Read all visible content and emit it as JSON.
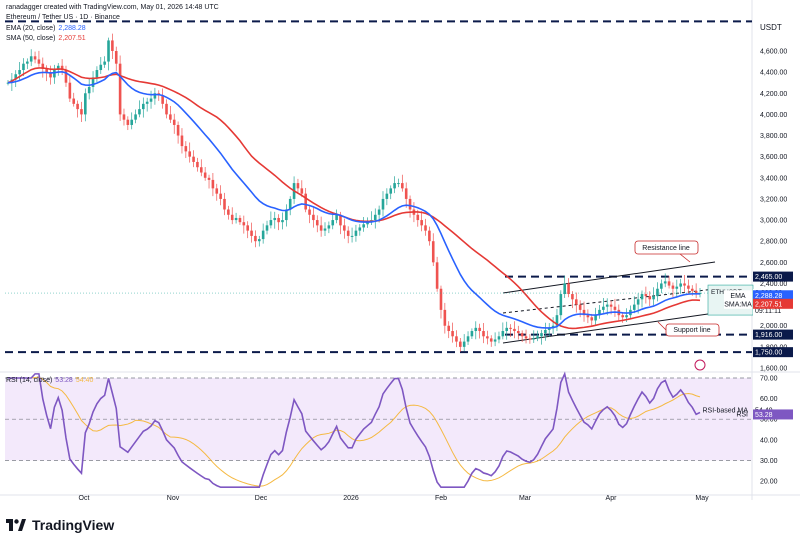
{
  "header": {
    "credit": "ranadagger created with TradingView.com, May 01, 2026 14:48 UTC",
    "symbol_line": "Ethereum / Tether US · 1D · Binance"
  },
  "legend": {
    "ema_label": "EMA (20, close)",
    "ema_value": "2,288.28",
    "sma_label": "SMA (50, close)",
    "sma_value": "2,207.51",
    "rsi_label": "RSI (14, close)",
    "rsi_value": "53.28",
    "rsi_ma_value": "54.40"
  },
  "branding": {
    "name": "TradingView"
  },
  "colors": {
    "up": "#26a69a",
    "down": "#ef5350",
    "ema": "#2962ff",
    "sma": "#e53935",
    "rsi": "#7e57c2",
    "rsi_ma": "#f5b942",
    "channel": "#131722",
    "level": "#0b1a4a"
  },
  "chart_data": {
    "type": "candlestick",
    "symbol": "ETHUSDT",
    "currency": "USDT",
    "y_ticks": [
      "4,600.00",
      "4,400.00",
      "4,200.00",
      "4,000.00",
      "3,800.00",
      "3,600.00",
      "3,400.00",
      "3,200.00",
      "3,000.00",
      "2,800.00",
      "2,600.00",
      "2,400.00",
      "2,200.00",
      "2,000.00",
      "1,800.00",
      "1,600.00"
    ],
    "x_ticks": [
      "Oct",
      "Nov",
      "Dec",
      "2026",
      "Feb",
      "Mar",
      "Apr",
      "May"
    ],
    "ylim": [
      1580,
      4800
    ],
    "last_price": "2,309.23",
    "last_change": "−46.27%",
    "countdown": "09:11:11",
    "ema_tag": "EMA",
    "sma_tag": "SMA:MA",
    "price_levels": [
      {
        "name": "resistance",
        "label": "2,465.00",
        "value": 2465
      },
      {
        "name": "support",
        "label": "1,916.00",
        "value": 1916
      },
      {
        "name": "bottom",
        "label": "1,750.00",
        "value": 1750
      }
    ],
    "top_level": 4880,
    "annotations": [
      {
        "text": "Resistance line"
      },
      {
        "text": "Support line"
      }
    ],
    "closes": [
      4300,
      4330,
      4380,
      4420,
      4480,
      4500,
      4550,
      4520,
      4480,
      4430,
      4390,
      4350,
      4420,
      4460,
      4420,
      4300,
      4150,
      4100,
      4050,
      4000,
      4200,
      4260,
      4350,
      4420,
      4470,
      4500,
      4700,
      4600,
      4480,
      4000,
      3950,
      3900,
      3950,
      4000,
      4050,
      4100,
      4120,
      4150,
      4200,
      4180,
      4100,
      4000,
      3950,
      3900,
      3800,
      3700,
      3650,
      3600,
      3550,
      3500,
      3450,
      3400,
      3380,
      3300,
      3250,
      3200,
      3100,
      3050,
      3000,
      3020,
      2980,
      2950,
      2900,
      2850,
      2800,
      2820,
      2900,
      2950,
      3000,
      3020,
      2980,
      3000,
      3100,
      3200,
      3350,
      3300,
      3250,
      3100,
      3050,
      3000,
      2950,
      2900,
      2920,
      2950,
      3000,
      3050,
      2950,
      2900,
      2850,
      2850,
      2900,
      2930,
      2960,
      2980,
      3000,
      3050,
      3100,
      3200,
      3250,
      3300,
      3350,
      3350,
      3300,
      3200,
      3100,
      3050,
      3000,
      2950,
      2900,
      2800,
      2600,
      2350,
      2150,
      2000,
      1950,
      1900,
      1850,
      1800,
      1850,
      1900,
      1950,
      1980,
      1950,
      1900,
      1880,
      1850,
      1870,
      1900,
      1950,
      1980,
      1970,
      1950,
      1930,
      1900,
      1880,
      1870,
      1880,
      1900,
      1930,
      1960,
      1980,
      2000,
      2100,
      2300,
      2400,
      2300,
      2250,
      2200,
      2150,
      2100,
      2080,
      2050,
      2100,
      2150,
      2180,
      2200,
      2180,
      2150,
      2100,
      2080,
      2100,
      2150,
      2200,
      2250,
      2300,
      2280,
      2250,
      2280,
      2350,
      2400,
      2420,
      2380,
      2350,
      2370,
      2400,
      2380,
      2350,
      2330,
      2300,
      2309
    ],
    "rsi": {
      "label": "RSI (14, close)",
      "ticks": [
        "70.00",
        "60.00",
        "50.00",
        "40.00",
        "30.00",
        "20.00"
      ],
      "ylim": [
        15,
        75
      ],
      "bands": [
        70,
        50,
        30
      ],
      "last": "53.28",
      "ma_last": "54.40",
      "ma_label": "RSI-based MA",
      "rsi_tag": "RSI"
    }
  }
}
